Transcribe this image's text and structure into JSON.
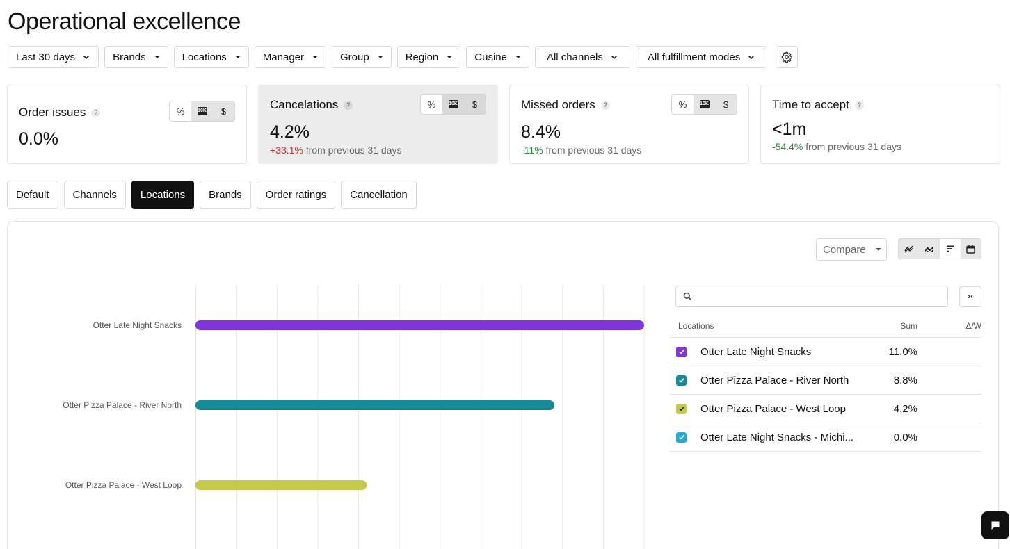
{
  "page": {
    "title": "Operational excellence"
  },
  "filters": [
    {
      "label": "Last 30 days",
      "icon": "chevron-down-icon"
    },
    {
      "label": "Brands",
      "icon": "caret-down-icon"
    },
    {
      "label": "Locations",
      "icon": "caret-down-icon"
    },
    {
      "label": "Manager",
      "icon": "caret-down-icon"
    },
    {
      "label": "Group",
      "icon": "caret-down-icon"
    },
    {
      "label": "Region",
      "icon": "caret-down-icon"
    },
    {
      "label": "Cusine",
      "icon": "caret-down-icon"
    },
    {
      "label": "All channels",
      "icon": "chevron-down-icon"
    },
    {
      "label": "All fulfillment modes",
      "icon": "chevron-down-icon"
    }
  ],
  "settings_icon": "gear-icon",
  "kpis": [
    {
      "title": "Order issues",
      "help": "?",
      "value": "0.0%",
      "delta": "",
      "delta_suffix": "",
      "selected": false,
      "modes": [
        "%",
        "10K",
        "$"
      ]
    },
    {
      "title": "Cancelations",
      "help": "?",
      "value": "4.2%",
      "delta": "+33.1%",
      "delta_suffix": "from previous 31 days",
      "delta_color": "#d0312d",
      "selected": true,
      "modes": [
        "%",
        "10K",
        "$"
      ]
    },
    {
      "title": "Missed orders",
      "help": "?",
      "value": "8.4%",
      "delta": "-11%",
      "delta_suffix": "from previous 31 days",
      "delta_color": "#2e8b3e",
      "selected": false,
      "modes": [
        "%",
        "10K",
        "$"
      ]
    },
    {
      "title": "Time to accept",
      "help": "?",
      "value": "<1m",
      "delta": "-54.4%",
      "delta_suffix": "from previous 31 days",
      "delta_color": "#2e8b3e",
      "selected": false
    }
  ],
  "tabs": [
    "Default",
    "Channels",
    "Locations",
    "Brands",
    "Order ratings",
    "Cancellation"
  ],
  "active_tab": "Locations",
  "toolbar": {
    "compare_label": "Compare",
    "views": [
      "line-chart-icon",
      "area-chart-icon",
      "bar-chart-icon",
      "calendar-icon"
    ],
    "active_view": "bar-chart-icon"
  },
  "chart_data": {
    "type": "bar",
    "orientation": "horizontal",
    "categories": [
      "Otter Late Night Snacks",
      "Otter Pizza Palace - River North",
      "Otter Pizza Palace - West Loop"
    ],
    "values": [
      11.0,
      8.8,
      4.2
    ],
    "colors": [
      "#7e35d9",
      "#168a96",
      "#c4c94a"
    ],
    "xlim": [
      0,
      11.0
    ],
    "grid": true
  },
  "legend": {
    "search_placeholder": "",
    "collapse_label": "›‹",
    "headers": {
      "name": "Locations",
      "sum": "Sum",
      "delta": "Δ/W"
    },
    "rows": [
      {
        "name": "Otter Late Night Snacks",
        "sum": "11.0%",
        "color": "#7e35d9"
      },
      {
        "name": "Otter Pizza Palace - River North",
        "sum": "8.8%",
        "color": "#168a96"
      },
      {
        "name": "Otter Pizza Palace - West Loop",
        "sum": "4.2%",
        "color": "#c4c94a"
      },
      {
        "name": "Otter Late Night Snacks - Michi...",
        "sum": "0.0%",
        "color": "#2aa8d4"
      }
    ]
  },
  "chat_icon": "chat-icon"
}
